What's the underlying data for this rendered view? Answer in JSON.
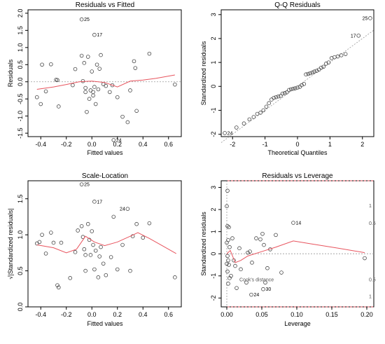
{
  "chart_data": [
    {
      "type": "scatter",
      "title": "Residuals vs Fitted",
      "xlabel": "Fitted values",
      "ylabel": "Residuals",
      "xlim": [
        -0.5,
        0.7
      ],
      "ylim": [
        -1.6,
        2.1
      ],
      "xticks": [
        -0.4,
        -0.2,
        0.0,
        0.2,
        0.4,
        0.6
      ],
      "xtick_labels": [
        "-0.4",
        "-0.2",
        "0.0",
        "0.2",
        "0.4",
        "0.6"
      ],
      "yticks": [
        -1.5,
        -1.0,
        -0.5,
        0.0,
        0.5,
        1.0,
        1.5,
        2.0
      ],
      "ytick_labels": [
        "-1.5",
        "-1.0",
        "-0.5",
        "0.0",
        "0.5",
        "1.0",
        "1.5",
        "2.0"
      ],
      "refline": {
        "type": "horizontal",
        "y": 0,
        "style": "dotted"
      },
      "points": [
        {
          "x": -0.08,
          "y": 1.82,
          "label": "25"
        },
        {
          "x": 0.02,
          "y": 1.37,
          "label": "17"
        },
        {
          "x": 0.17,
          "y": -1.7,
          "label": "24"
        },
        {
          "x": -0.43,
          "y": -0.45
        },
        {
          "x": -0.4,
          "y": -0.65
        },
        {
          "x": -0.39,
          "y": 0.5
        },
        {
          "x": -0.36,
          "y": -0.28
        },
        {
          "x": -0.32,
          "y": 0.51
        },
        {
          "x": -0.28,
          "y": 0.06
        },
        {
          "x": -0.27,
          "y": 0.05
        },
        {
          "x": -0.26,
          "y": -0.72
        },
        {
          "x": -0.15,
          "y": -0.1
        },
        {
          "x": -0.13,
          "y": 0.37
        },
        {
          "x": -0.08,
          "y": 0.76
        },
        {
          "x": -0.07,
          "y": 0.02
        },
        {
          "x": -0.06,
          "y": 0.55
        },
        {
          "x": -0.05,
          "y": -0.18
        },
        {
          "x": -0.05,
          "y": -0.3
        },
        {
          "x": -0.04,
          "y": -0.88
        },
        {
          "x": -0.03,
          "y": 0.73
        },
        {
          "x": -0.02,
          "y": -0.5
        },
        {
          "x": -0.01,
          "y": -0.25
        },
        {
          "x": 0.0,
          "y": 0.3
        },
        {
          "x": 0.01,
          "y": -0.3
        },
        {
          "x": 0.01,
          "y": -0.4
        },
        {
          "x": 0.02,
          "y": -0.15
        },
        {
          "x": 0.03,
          "y": -0.65
        },
        {
          "x": 0.04,
          "y": 0.5
        },
        {
          "x": 0.05,
          "y": -0.22
        },
        {
          "x": 0.06,
          "y": 0.38
        },
        {
          "x": 0.07,
          "y": 0.78
        },
        {
          "x": 0.09,
          "y": -0.07
        },
        {
          "x": 0.11,
          "y": -0.12
        },
        {
          "x": 0.14,
          "y": -0.3
        },
        {
          "x": 0.16,
          "y": -0.1
        },
        {
          "x": 0.2,
          "y": -0.45
        },
        {
          "x": 0.24,
          "y": -1.02
        },
        {
          "x": 0.28,
          "y": -1.18
        },
        {
          "x": 0.3,
          "y": -0.25
        },
        {
          "x": 0.33,
          "y": 0.6
        },
        {
          "x": 0.34,
          "y": 0.4
        },
        {
          "x": 0.35,
          "y": -0.85
        },
        {
          "x": 0.45,
          "y": 0.82
        },
        {
          "x": 0.65,
          "y": -0.08
        }
      ],
      "smooth": [
        [
          -0.43,
          -0.22
        ],
        [
          -0.3,
          -0.15
        ],
        [
          -0.2,
          -0.08
        ],
        [
          -0.1,
          0.0
        ],
        [
          0.0,
          0.02
        ],
        [
          0.1,
          -0.02
        ],
        [
          0.2,
          -0.15
        ],
        [
          0.3,
          0.02
        ],
        [
          0.4,
          0.05
        ],
        [
          0.5,
          0.1
        ],
        [
          0.65,
          0.2
        ]
      ]
    },
    {
      "type": "scatter",
      "title": "Q-Q Residuals",
      "xlabel": "Theoretical Quantiles",
      "ylabel": "Standardized residuals",
      "xlim": [
        -2.35,
        2.35
      ],
      "ylim": [
        -2.1,
        3.2
      ],
      "xticks": [
        -2,
        -1,
        0,
        1,
        2
      ],
      "xtick_labels": [
        "-2",
        "-1",
        "0",
        "1",
        "2"
      ],
      "yticks": [
        -2,
        -1,
        0,
        1,
        2,
        3
      ],
      "ytick_labels": [
        "-2",
        "-1",
        "0",
        "1",
        "2",
        "3"
      ],
      "refline": {
        "type": "diagonal",
        "from": [
          -2.35,
          -2.35
        ],
        "to": [
          2.35,
          2.35
        ],
        "style": "dotted"
      },
      "points": [
        {
          "x": -2.24,
          "y": -1.95,
          "label": "24"
        },
        {
          "x": -1.88,
          "y": -1.72
        },
        {
          "x": -1.65,
          "y": -1.55
        },
        {
          "x": -1.48,
          "y": -1.38
        },
        {
          "x": -1.35,
          "y": -1.28
        },
        {
          "x": -1.24,
          "y": -1.15
        },
        {
          "x": -1.14,
          "y": -1.1
        },
        {
          "x": -1.05,
          "y": -1.0
        },
        {
          "x": -0.96,
          "y": -0.85
        },
        {
          "x": -0.88,
          "y": -0.7
        },
        {
          "x": -0.8,
          "y": -0.55
        },
        {
          "x": -0.73,
          "y": -0.48
        },
        {
          "x": -0.66,
          "y": -0.45
        },
        {
          "x": -0.59,
          "y": -0.42
        },
        {
          "x": -0.52,
          "y": -0.4
        },
        {
          "x": -0.46,
          "y": -0.3
        },
        {
          "x": -0.39,
          "y": -0.28
        },
        {
          "x": -0.33,
          "y": -0.25
        },
        {
          "x": -0.26,
          "y": -0.15
        },
        {
          "x": -0.2,
          "y": -0.12
        },
        {
          "x": -0.13,
          "y": -0.1
        },
        {
          "x": -0.07,
          "y": -0.08
        },
        {
          "x": 0.0,
          "y": -0.05
        },
        {
          "x": 0.07,
          "y": -0.02
        },
        {
          "x": 0.13,
          "y": 0.05
        },
        {
          "x": 0.2,
          "y": 0.1
        },
        {
          "x": 0.26,
          "y": 0.5
        },
        {
          "x": 0.33,
          "y": 0.52
        },
        {
          "x": 0.39,
          "y": 0.55
        },
        {
          "x": 0.46,
          "y": 0.58
        },
        {
          "x": 0.52,
          "y": 0.62
        },
        {
          "x": 0.59,
          "y": 0.65
        },
        {
          "x": 0.66,
          "y": 0.7
        },
        {
          "x": 0.73,
          "y": 0.78
        },
        {
          "x": 0.8,
          "y": 0.82
        },
        {
          "x": 0.88,
          "y": 0.95
        },
        {
          "x": 0.96,
          "y": 1.0
        },
        {
          "x": 1.05,
          "y": 1.18
        },
        {
          "x": 1.14,
          "y": 1.22
        },
        {
          "x": 1.24,
          "y": 1.25
        },
        {
          "x": 1.35,
          "y": 1.3
        },
        {
          "x": 1.48,
          "y": 1.35
        },
        {
          "x": 1.88,
          "y": 2.12,
          "label": "17"
        },
        {
          "x": 2.24,
          "y": 2.85,
          "label": "25"
        }
      ]
    },
    {
      "type": "scatter",
      "title": "Scale-Location",
      "xlabel": "Fitted values",
      "ylabel": "√|Standardized residuals|",
      "xlim": [
        -0.5,
        0.7
      ],
      "ylim": [
        0.0,
        1.75
      ],
      "xticks": [
        -0.4,
        -0.2,
        0.0,
        0.2,
        0.4,
        0.6
      ],
      "xtick_labels": [
        "-0.4",
        "-0.2",
        "0.0",
        "0.2",
        "0.4",
        "0.6"
      ],
      "yticks": [
        0.0,
        0.5,
        1.0,
        1.5
      ],
      "ytick_labels": [
        "0.0",
        "0.5",
        "1.0",
        "1.5"
      ],
      "points": [
        {
          "x": -0.08,
          "y": 1.7,
          "label": "25"
        },
        {
          "x": 0.02,
          "y": 1.46,
          "label": "17"
        },
        {
          "x": 0.28,
          "y": 1.36,
          "label": "24"
        },
        {
          "x": -0.43,
          "y": 0.88
        },
        {
          "x": -0.41,
          "y": 0.9
        },
        {
          "x": -0.39,
          "y": 1.0
        },
        {
          "x": -0.36,
          "y": 0.74
        },
        {
          "x": -0.32,
          "y": 1.03
        },
        {
          "x": -0.3,
          "y": 0.89
        },
        {
          "x": -0.27,
          "y": 0.3
        },
        {
          "x": -0.26,
          "y": 0.27
        },
        {
          "x": -0.24,
          "y": 0.89
        },
        {
          "x": -0.17,
          "y": 0.4
        },
        {
          "x": -0.13,
          "y": 0.76
        },
        {
          "x": -0.11,
          "y": 1.06
        },
        {
          "x": -0.08,
          "y": 1.12
        },
        {
          "x": -0.07,
          "y": 0.97
        },
        {
          "x": -0.06,
          "y": 0.8
        },
        {
          "x": -0.05,
          "y": 0.72
        },
        {
          "x": -0.05,
          "y": 0.5
        },
        {
          "x": -0.03,
          "y": 1.15
        },
        {
          "x": -0.02,
          "y": 0.93
        },
        {
          "x": -0.01,
          "y": 0.72
        },
        {
          "x": 0.0,
          "y": 1.05
        },
        {
          "x": 0.01,
          "y": 0.86
        },
        {
          "x": 0.02,
          "y": 0.52
        },
        {
          "x": 0.03,
          "y": 0.78
        },
        {
          "x": 0.05,
          "y": 0.41
        },
        {
          "x": 0.06,
          "y": 0.7
        },
        {
          "x": 0.07,
          "y": 0.83
        },
        {
          "x": 0.09,
          "y": 0.6
        },
        {
          "x": 0.11,
          "y": 0.44
        },
        {
          "x": 0.15,
          "y": 0.69
        },
        {
          "x": 0.17,
          "y": 1.25
        },
        {
          "x": 0.2,
          "y": 0.52
        },
        {
          "x": 0.24,
          "y": 0.86
        },
        {
          "x": 0.3,
          "y": 0.5
        },
        {
          "x": 0.32,
          "y": 0.98
        },
        {
          "x": 0.35,
          "y": 1.15
        },
        {
          "x": 0.4,
          "y": 0.96
        },
        {
          "x": 0.45,
          "y": 1.16
        },
        {
          "x": 0.65,
          "y": 0.41
        }
      ],
      "smooth": [
        [
          -0.43,
          0.86
        ],
        [
          -0.3,
          0.82
        ],
        [
          -0.2,
          0.75
        ],
        [
          -0.12,
          0.8
        ],
        [
          -0.05,
          0.98
        ],
        [
          0.02,
          0.9
        ],
        [
          0.1,
          0.85
        ],
        [
          0.2,
          0.9
        ],
        [
          0.3,
          0.98
        ],
        [
          0.36,
          1.03
        ],
        [
          0.45,
          0.95
        ],
        [
          0.55,
          0.85
        ],
        [
          0.66,
          0.74
        ]
      ]
    },
    {
      "type": "scatter",
      "title": "Residuals vs Leverage",
      "xlabel": "Leverage",
      "ylabel": "Standardized residuals",
      "xlim": [
        -0.008,
        0.21
      ],
      "ylim": [
        -2.4,
        3.3
      ],
      "xticks": [
        0.0,
        0.05,
        0.1,
        0.15,
        0.2
      ],
      "xtick_labels": [
        "0.00",
        "0.05",
        "0.10",
        "0.15",
        "0.20"
      ],
      "yticks": [
        -2,
        -1,
        0,
        1,
        2,
        3
      ],
      "ytick_labels": [
        "-2",
        "-1",
        "0",
        "1",
        "2",
        "3"
      ],
      "refline": {
        "type": "horizontal",
        "y": 0,
        "style": "dotted"
      },
      "cook_label": "Cook's distance",
      "cook_levels": [
        "0.5",
        "1",
        "0.5",
        "1"
      ],
      "points": [
        {
          "x": 0.095,
          "y": 1.4,
          "label": "14"
        },
        {
          "x": 0.052,
          "y": -1.6,
          "label": "30"
        },
        {
          "x": 0.035,
          "y": -1.85,
          "label": "24"
        },
        {
          "x": 0.001,
          "y": 2.85
        },
        {
          "x": 0.0,
          "y": 2.15
        },
        {
          "x": 0.001,
          "y": 1.25
        },
        {
          "x": 0.003,
          "y": 1.2
        },
        {
          "x": 0.002,
          "y": 0.62
        },
        {
          "x": 0.0,
          "y": 0.5
        },
        {
          "x": 0.004,
          "y": 0.3
        },
        {
          "x": 0.001,
          "y": -0.1
        },
        {
          "x": 0.0,
          "y": -0.45
        },
        {
          "x": 0.002,
          "y": -0.3
        },
        {
          "x": 0.003,
          "y": -0.5
        },
        {
          "x": 0.001,
          "y": -0.8
        },
        {
          "x": 0.004,
          "y": -1.1
        },
        {
          "x": 0.002,
          "y": -1.35
        },
        {
          "x": 0.006,
          "y": -1.0
        },
        {
          "x": 0.008,
          "y": 0.7
        },
        {
          "x": 0.01,
          "y": -0.3
        },
        {
          "x": 0.012,
          "y": -0.55
        },
        {
          "x": 0.014,
          "y": -1.55
        },
        {
          "x": 0.018,
          "y": 0.25
        },
        {
          "x": 0.02,
          "y": -0.7
        },
        {
          "x": 0.028,
          "y": -1.3
        },
        {
          "x": 0.03,
          "y": 0.05
        },
        {
          "x": 0.033,
          "y": 0.1
        },
        {
          "x": 0.036,
          "y": -0.4
        },
        {
          "x": 0.042,
          "y": 0.7
        },
        {
          "x": 0.048,
          "y": 0.65
        },
        {
          "x": 0.051,
          "y": 0.9
        },
        {
          "x": 0.053,
          "y": 0.4
        },
        {
          "x": 0.055,
          "y": -1.3
        },
        {
          "x": 0.058,
          "y": -0.65
        },
        {
          "x": 0.062,
          "y": 0.2
        },
        {
          "x": 0.07,
          "y": 0.85
        },
        {
          "x": 0.078,
          "y": -0.85
        },
        {
          "x": 0.197,
          "y": -0.2
        }
      ],
      "smooth": [
        [
          0.0,
          0.0
        ],
        [
          0.005,
          0.15
        ],
        [
          0.012,
          -0.4
        ],
        [
          0.02,
          -0.3
        ],
        [
          0.03,
          -0.1
        ],
        [
          0.05,
          0.1
        ],
        [
          0.07,
          0.3
        ],
        [
          0.095,
          0.58
        ],
        [
          0.12,
          0.45
        ],
        [
          0.16,
          0.25
        ],
        [
          0.197,
          0.05
        ]
      ]
    }
  ]
}
